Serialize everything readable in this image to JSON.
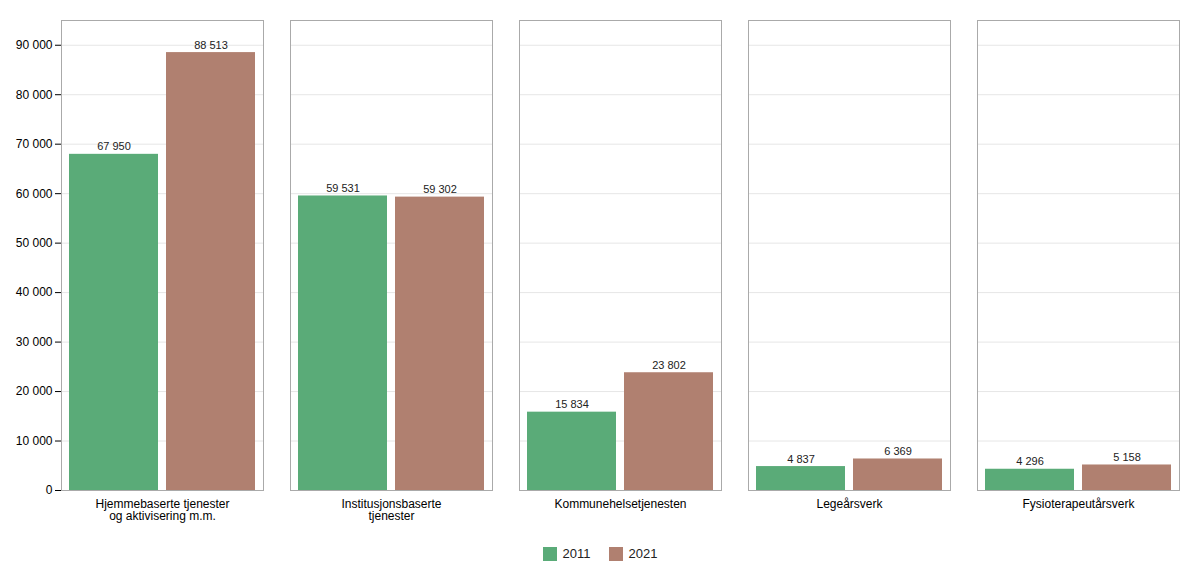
{
  "chart_data": {
    "type": "bar",
    "categories": [
      "Hjemmebaserte tjenester\nog aktivisering m.m.",
      "Institusjonsbaserte\ntjenester",
      "Kommunehelsetjenesten",
      "Legeårsverk",
      "Fysioterapeutårsverk"
    ],
    "series": [
      {
        "name": "2011",
        "color": "#5aab78",
        "values": [
          67950,
          59531,
          15834,
          4837,
          4296
        ],
        "value_labels": [
          "67 950",
          "59 531",
          "15 834",
          "4 837",
          "4 296"
        ]
      },
      {
        "name": "2021",
        "color": "#b08070",
        "values": [
          88513,
          59302,
          23802,
          6369,
          5158
        ],
        "value_labels": [
          "88 513",
          "59 302",
          "23 802",
          "6 369",
          "5 158"
        ]
      }
    ],
    "ylim": [
      0,
      95000
    ],
    "yticks": [
      0,
      {
        "value": 10000,
        "label": "10 000"
      },
      {
        "value": 20000,
        "label": "20 000"
      },
      {
        "value": 30000,
        "label": "30 000"
      },
      {
        "value": 40000,
        "label": "40 000"
      },
      {
        "value": 50000,
        "label": "50 000"
      },
      {
        "value": 60000,
        "label": "60 000"
      },
      {
        "value": 70000,
        "label": "70 000"
      },
      {
        "value": 80000,
        "label": "80 000"
      },
      {
        "value": 90000,
        "label": "90 000"
      }
    ],
    "grid": true,
    "data_labels": true,
    "legend": "bottom"
  }
}
